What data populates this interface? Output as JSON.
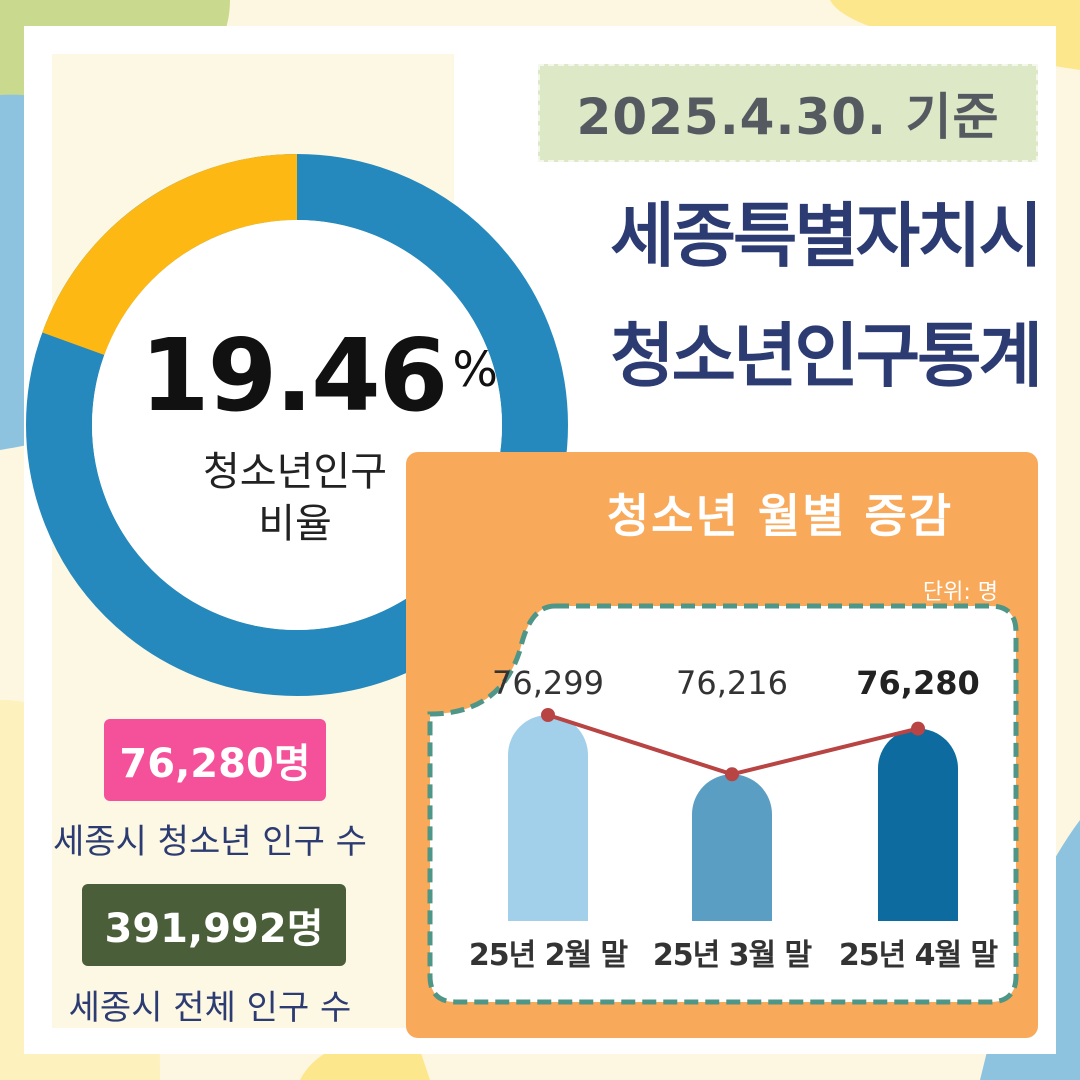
{
  "date_label": "2025.4.30. 기준",
  "title": {
    "line1": "세종특별자치시",
    "line2": "청소년인구통계"
  },
  "donut": {
    "value": "19.46",
    "unit": "%",
    "label_line1": "청소년인구",
    "label_line2": "비율",
    "fraction": 0.1946,
    "colors": {
      "youth": "#fdb813",
      "rest": "#2589bd"
    }
  },
  "stats": [
    {
      "value": "76,280명",
      "caption": "세종시 청소년 인구 수",
      "color": "#f5509a"
    },
    {
      "value": "391,992명",
      "caption": "세종시 전체 인구 수",
      "color": "#4a5f39"
    }
  ],
  "chart_data": {
    "type": "bar",
    "title": "청소년 월별 증감",
    "unit_label": "단위: 명",
    "categories": [
      "25년 2월 말",
      "25년 3월 말",
      "25년 4월 말"
    ],
    "values": [
      76299,
      76216,
      76280
    ],
    "value_labels": [
      "76,299",
      "76,216",
      "76,280"
    ],
    "bar_colors": [
      "#a2d0ea",
      "#5b9ec3",
      "#0e6b9f"
    ],
    "line_color": "#b84444",
    "overlay": "line"
  }
}
